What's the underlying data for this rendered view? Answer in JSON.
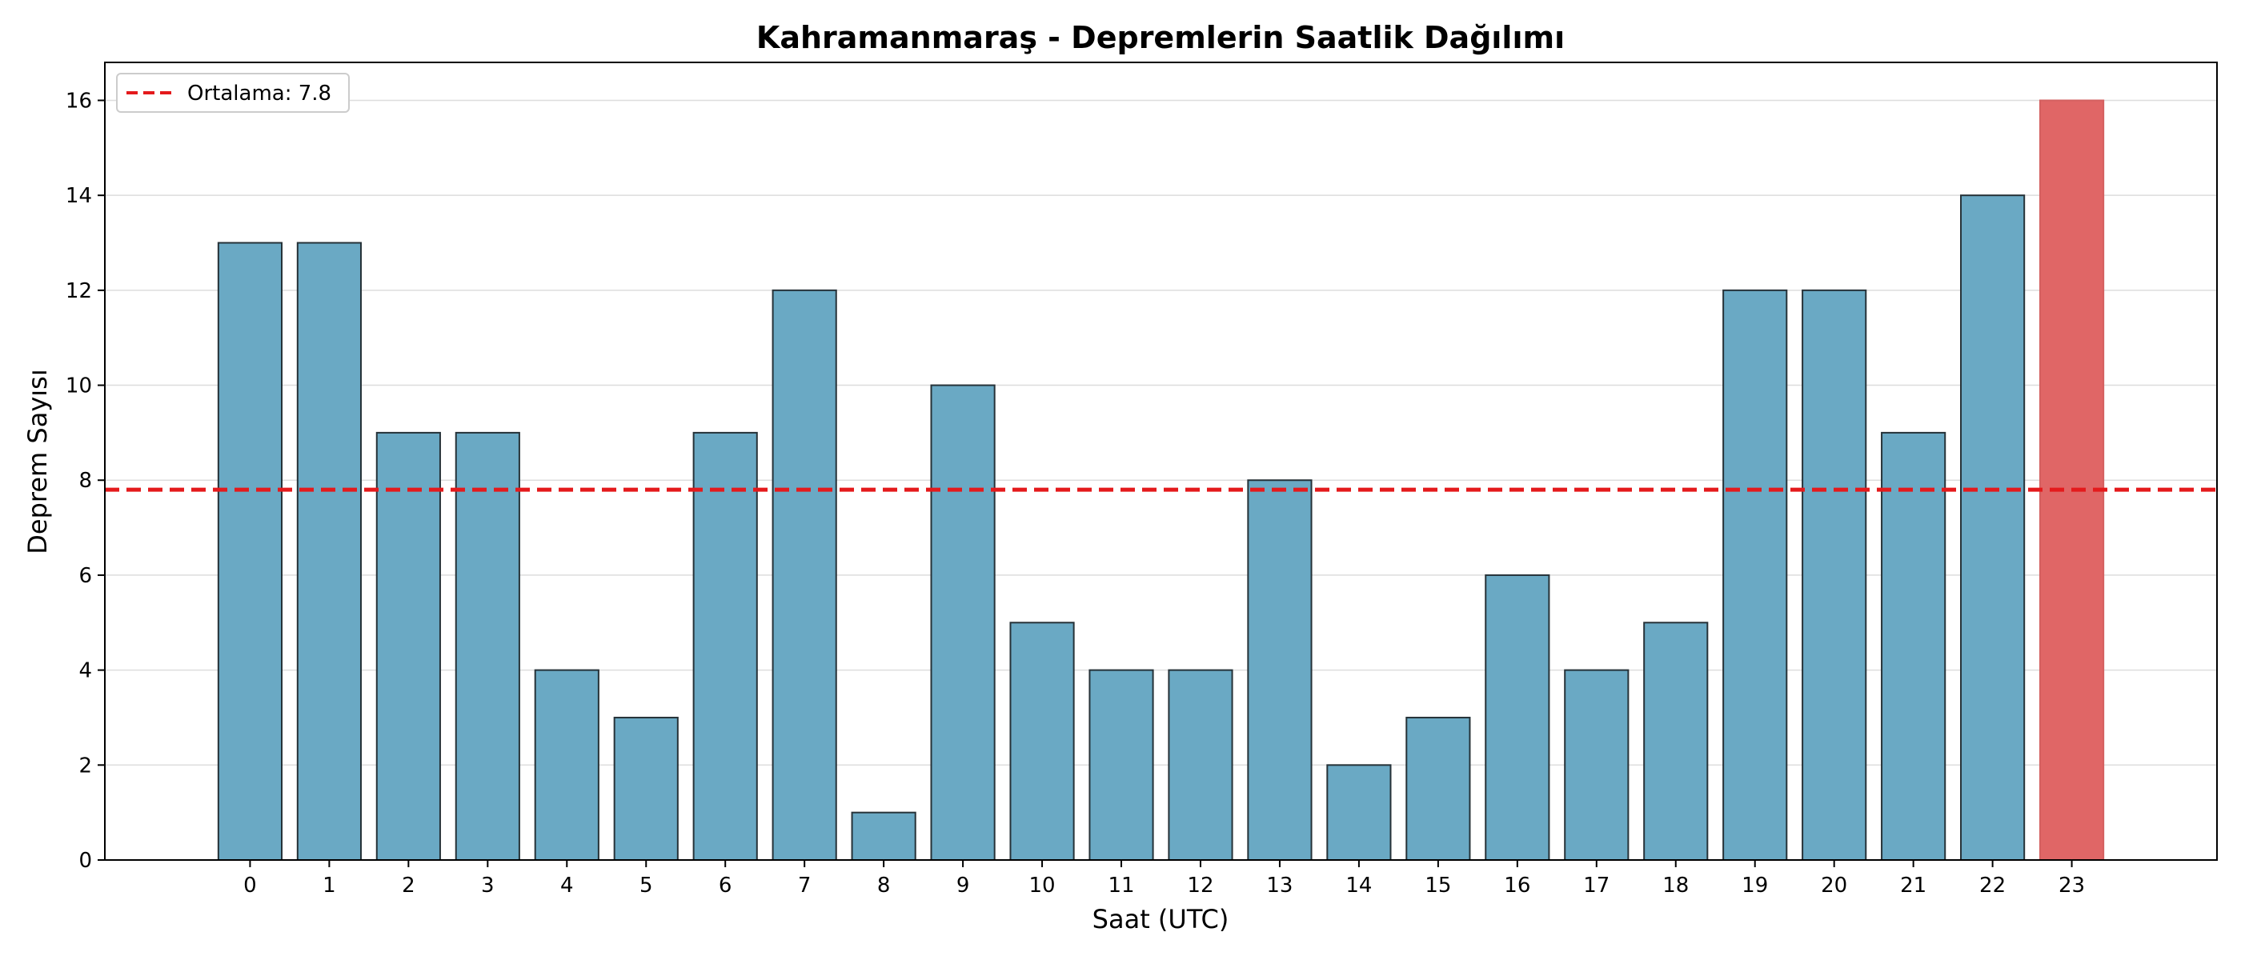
{
  "chart_data": {
    "type": "bar",
    "title": "Kahramanmaraş - Depremlerin Saatlik Dağılımı",
    "xlabel": "Saat (UTC)",
    "ylabel": "Deprem Sayısı",
    "categories": [
      "0",
      "1",
      "2",
      "3",
      "4",
      "5",
      "6",
      "7",
      "8",
      "9",
      "10",
      "11",
      "12",
      "13",
      "14",
      "15",
      "16",
      "17",
      "18",
      "19",
      "20",
      "21",
      "22",
      "23"
    ],
    "values": [
      13,
      13,
      9,
      9,
      4,
      3,
      9,
      12,
      1,
      10,
      5,
      4,
      4,
      8,
      2,
      3,
      6,
      4,
      5,
      12,
      12,
      9,
      14,
      16
    ],
    "ylim": [
      0,
      16.8
    ],
    "yticks": [
      0,
      2,
      4,
      6,
      8,
      10,
      12,
      14,
      16
    ],
    "grid": true,
    "bar_color": "#6aa9c4",
    "highlight_index": 23,
    "highlight_color": "#e06666",
    "mean": {
      "value": 7.8,
      "label": "Ortalama: 7.8",
      "color": "#e41a1c",
      "style": "dashed"
    },
    "legend": {
      "position": "top-left"
    }
  }
}
